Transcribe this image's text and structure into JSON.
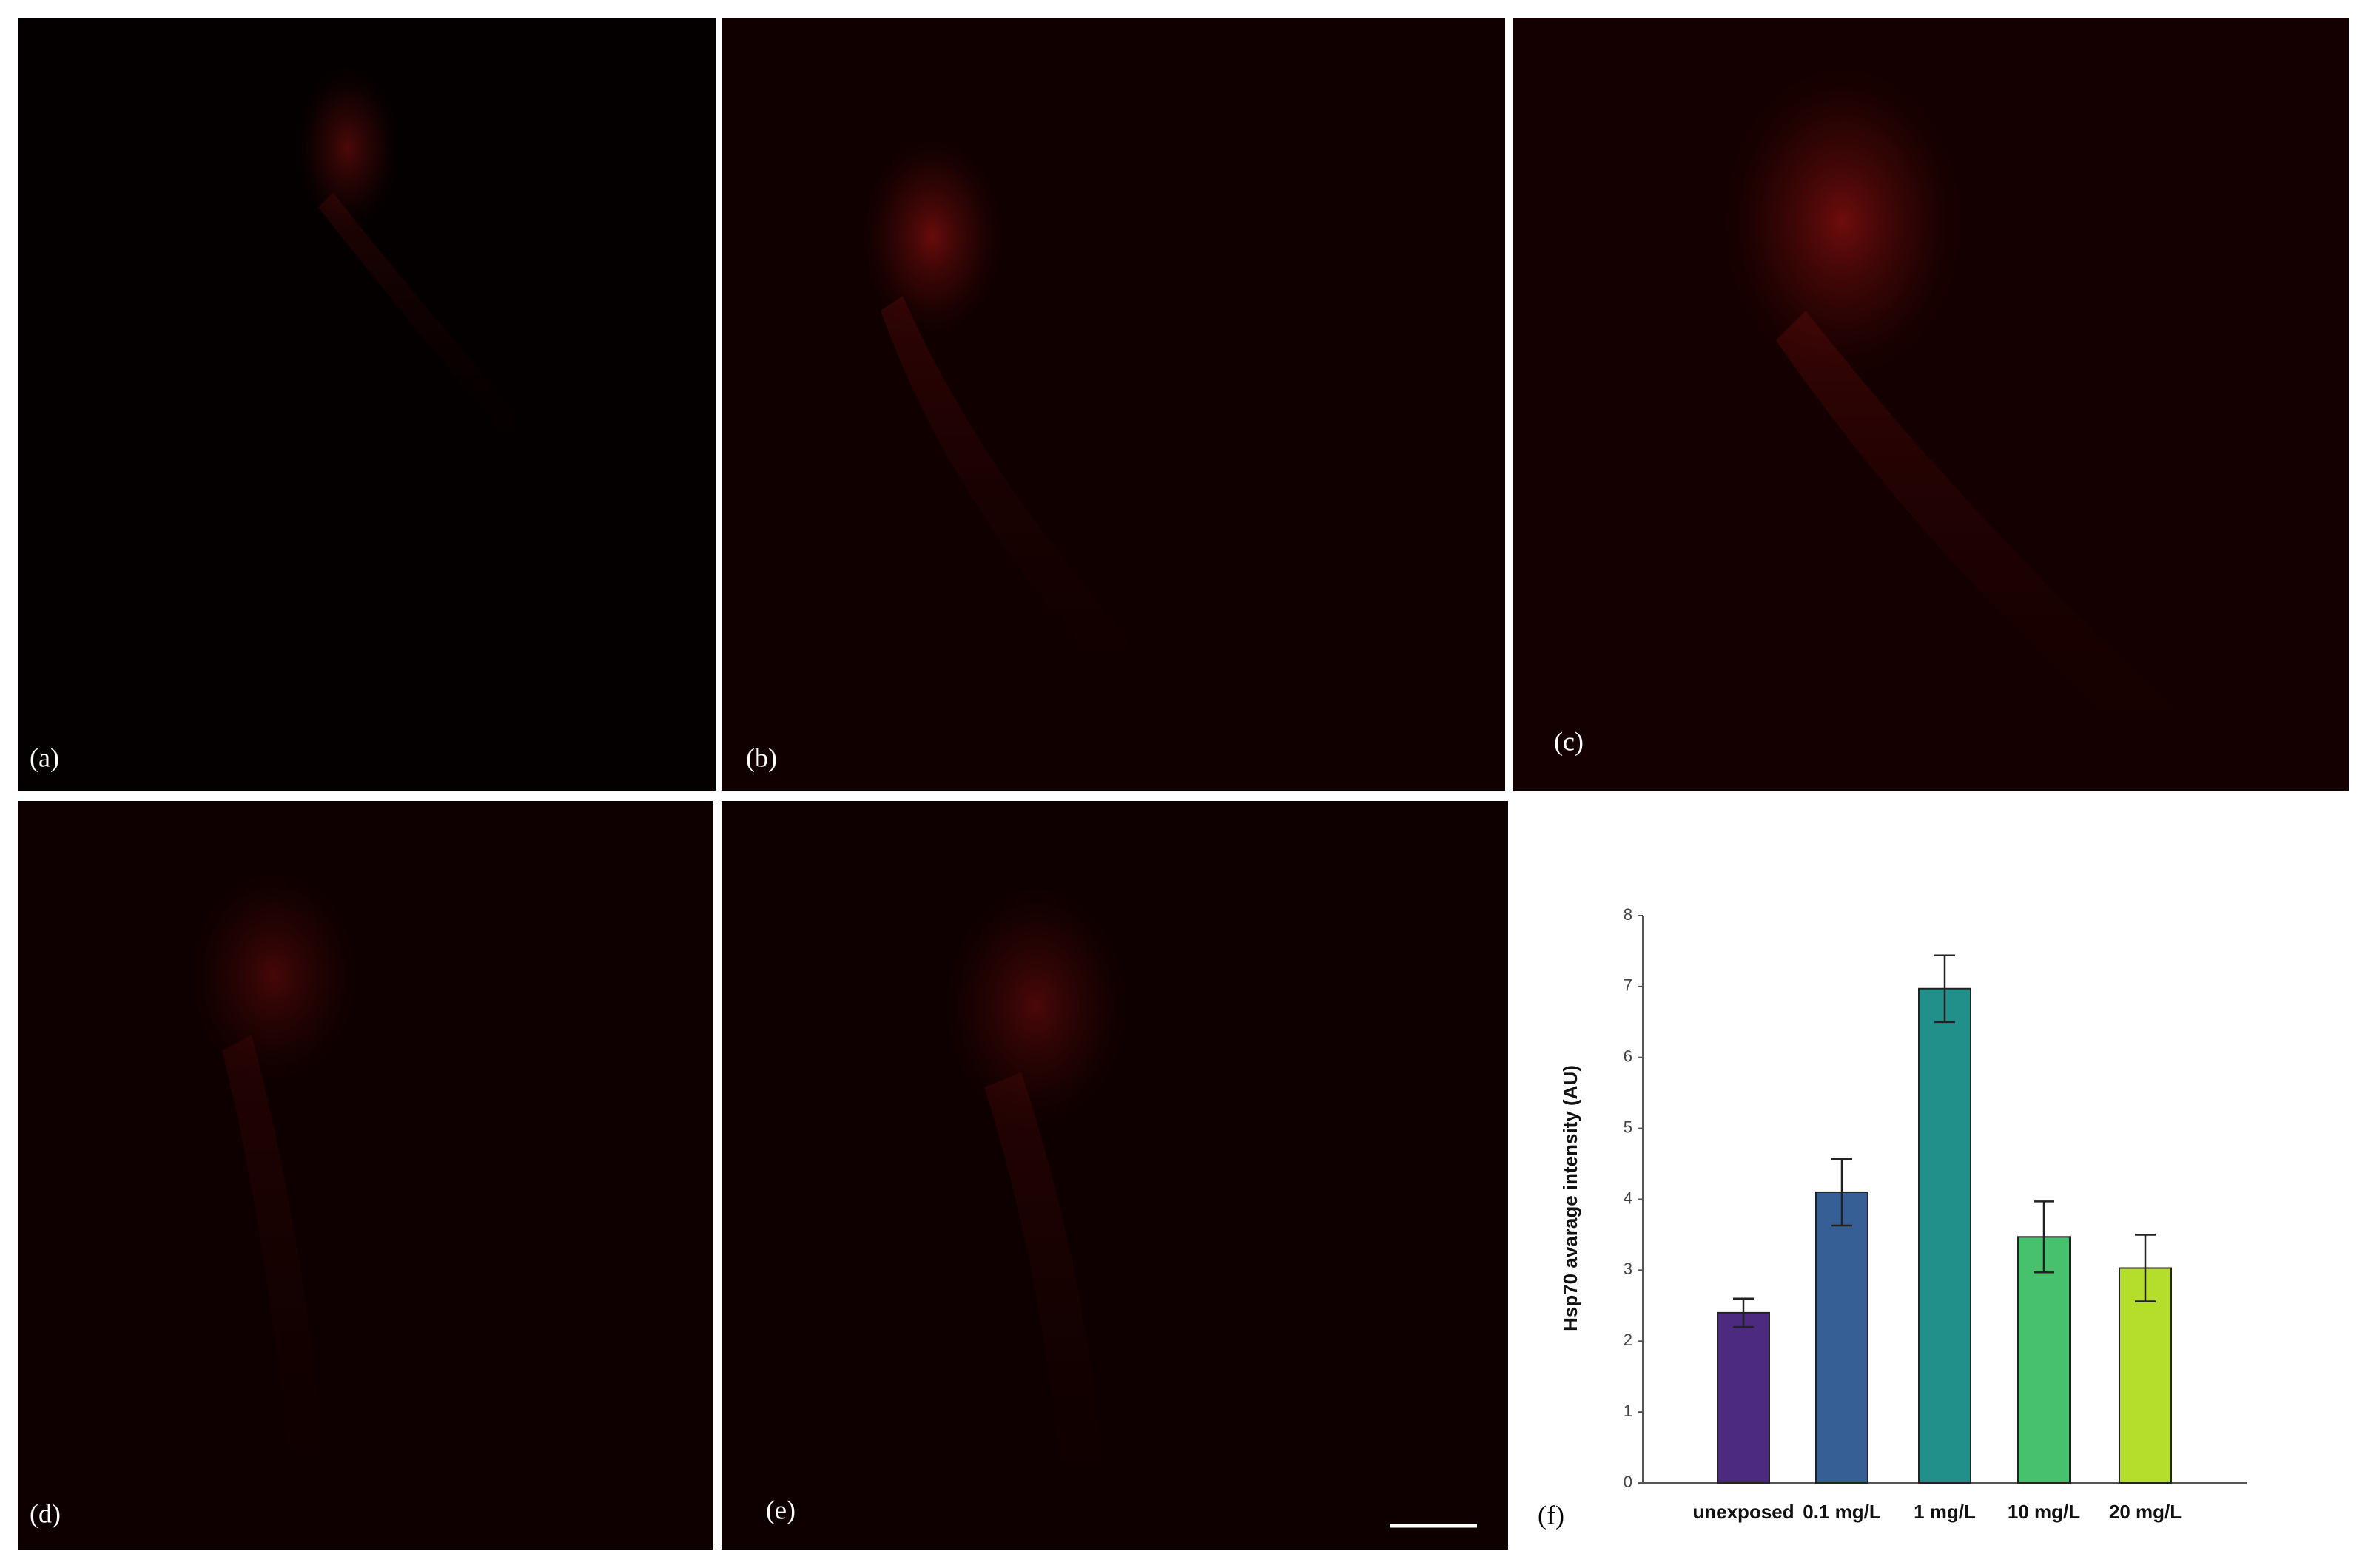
{
  "panels": [
    {
      "label": "(a)"
    },
    {
      "label": "(b)"
    },
    {
      "label": "(c)"
    },
    {
      "label": "(d)"
    },
    {
      "label": "(e)"
    }
  ],
  "chart_data": {
    "type": "bar",
    "label": "(f)",
    "y_label": "Hsp70 avarage intensity (AU)",
    "categories": [
      "unexposed",
      "0.1 mg/L",
      "1 mg/L",
      "10 mg/L",
      "20 mg/L"
    ],
    "values": [
      2.4,
      4.1,
      6.97,
      3.47,
      3.03
    ],
    "errors": [
      0.2,
      0.47,
      0.47,
      0.5,
      0.47
    ],
    "colors": [
      "#4b2a7f",
      "#365f95",
      "#22908a",
      "#47c16e",
      "#b5dd2b"
    ],
    "ylim": [
      0,
      8
    ],
    "yticks": [
      0,
      1,
      2,
      3,
      4,
      5,
      6,
      7,
      8
    ]
  }
}
